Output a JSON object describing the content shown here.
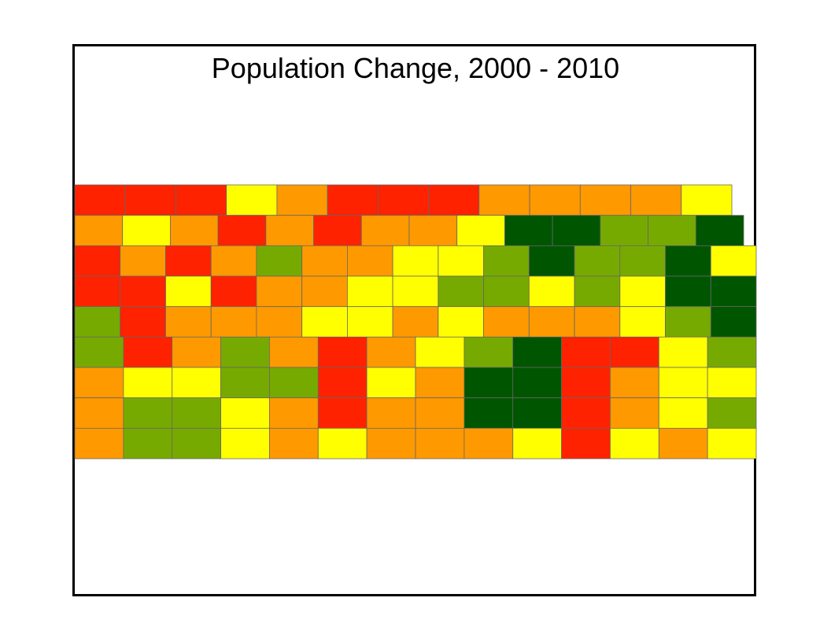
{
  "title": "Population Change, 2000 - 2010",
  "palette": {
    "R": "#ff2200",
    "O": "#ff9900",
    "Y": "#ffff00",
    "L": "#77aa00",
    "D": "#005500"
  },
  "county_border_color": "#666666",
  "rows": [
    [
      "R",
      "R",
      "R",
      "Y",
      "O",
      "R",
      "R",
      "R",
      "O",
      "O",
      "O",
      "O",
      "Y"
    ],
    [
      "O",
      "Y",
      "O",
      "R",
      "O",
      "R",
      "O",
      "O",
      "Y",
      "D",
      "D",
      "L",
      "L",
      "D"
    ],
    [
      "R",
      "O",
      "R",
      "O",
      "L",
      "O",
      "O",
      "Y",
      "Y",
      "L",
      "D",
      "L",
      "L",
      "D",
      "Y"
    ],
    [
      "R",
      "R",
      "Y",
      "R",
      "O",
      "O",
      "Y",
      "Y",
      "L",
      "L",
      "Y",
      "L",
      "Y",
      "D",
      "D"
    ],
    [
      "L",
      "R",
      "O",
      "O",
      "O",
      "Y",
      "Y",
      "O",
      "Y",
      "O",
      "O",
      "O",
      "Y",
      "L",
      "D"
    ],
    [
      "L",
      "R",
      "O",
      "L",
      "O",
      "R",
      "O",
      "Y",
      "L",
      "D",
      "R",
      "R",
      "Y",
      "L"
    ],
    [
      "O",
      "Y",
      "Y",
      "L",
      "L",
      "R",
      "Y",
      "O",
      "D",
      "D",
      "R",
      "O",
      "Y",
      "Y"
    ],
    [
      "O",
      "L",
      "L",
      "Y",
      "O",
      "R",
      "O",
      "O",
      "D",
      "D",
      "R",
      "O",
      "Y",
      "L"
    ],
    [
      "O",
      "L",
      "L",
      "Y",
      "O",
      "Y",
      "O",
      "O",
      "O",
      "Y",
      "R",
      "Y",
      "O",
      "Y"
    ]
  ]
}
